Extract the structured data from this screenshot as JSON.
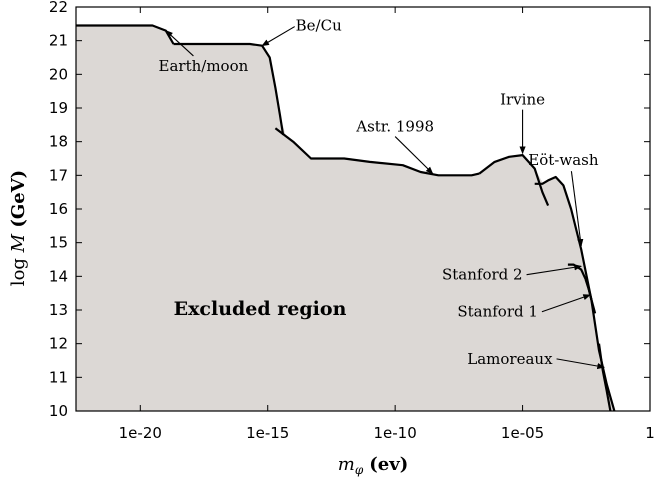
{
  "chart_data": {
    "type": "area",
    "xlabel": "m_φ (ev)",
    "ylabel": "log M (GeV)",
    "xlabel_main": "m",
    "xlabel_sub": "φ",
    "xlabel_unit": "(ev)",
    "ylabel_log": "log ",
    "ylabel_var": "M",
    "ylabel_unit": " (GeV)",
    "x_scale": "log",
    "xlim": [
      3e-23,
      1
    ],
    "ylim": [
      10,
      22
    ],
    "x_ticks": [
      {
        "value": 1e-20,
        "label": "1e-20"
      },
      {
        "value": 1e-15,
        "label": "1e-15"
      },
      {
        "value": 1e-10,
        "label": "1e-10"
      },
      {
        "value": 1e-05,
        "label": "1e-05"
      },
      {
        "value": 1,
        "label": "1"
      }
    ],
    "y_ticks": [
      10,
      11,
      12,
      13,
      14,
      15,
      16,
      17,
      18,
      19,
      20,
      21,
      22
    ],
    "fill_color": "#dcd8d5",
    "region_label": "Excluded region",
    "boundary": [
      [
        3e-23,
        21.45
      ],
      [
        3e-20,
        21.45
      ],
      [
        1e-19,
        21.3
      ],
      [
        2e-19,
        20.9
      ],
      [
        1e-17,
        20.9
      ],
      [
        2e-16,
        20.9
      ],
      [
        6e-16,
        20.85
      ],
      [
        1.2e-15,
        20.5
      ],
      [
        2e-15,
        19.6
      ],
      [
        3e-15,
        18.8
      ],
      [
        5e-15,
        18.2
      ],
      [
        1e-14,
        18.0
      ],
      [
        5e-14,
        17.5
      ],
      [
        1e-12,
        17.5
      ],
      [
        1e-11,
        17.4
      ],
      [
        2e-10,
        17.3
      ],
      [
        1e-09,
        17.1
      ],
      [
        5e-09,
        17.0
      ],
      [
        1e-07,
        17.0
      ],
      [
        2e-07,
        17.1
      ],
      [
        8e-07,
        17.4
      ],
      [
        3e-06,
        17.55
      ],
      [
        1e-05,
        17.6
      ],
      [
        3e-05,
        17.2
      ],
      [
        6e-05,
        16.8
      ],
      [
        0.0001,
        16.85
      ],
      [
        0.0002,
        16.95
      ],
      [
        0.0004,
        16.7
      ],
      [
        0.0008,
        16.0
      ],
      [
        0.002,
        14.8
      ],
      [
        0.005,
        13.3
      ],
      [
        0.01,
        11.8
      ],
      [
        0.02,
        10.8
      ],
      [
        0.04,
        10.0
      ]
    ],
    "curves": [
      {
        "name": "Earth/moon",
        "points": [
          [
            3e-23,
            21.45
          ],
          [
            3e-20,
            21.45
          ],
          [
            1e-19,
            21.3
          ],
          [
            2e-19,
            20.9
          ]
        ]
      },
      {
        "name": "Be/Cu",
        "points": [
          [
            2e-19,
            20.9
          ],
          [
            2e-16,
            20.9
          ],
          [
            6e-16,
            20.85
          ],
          [
            1.2e-15,
            20.5
          ],
          [
            2e-15,
            19.6
          ],
          [
            3e-15,
            18.8
          ],
          [
            4e-15,
            18.2
          ]
        ]
      },
      {
        "name": "Astr. 1998",
        "points": [
          [
            2e-15,
            18.4
          ],
          [
            1e-14,
            18.0
          ],
          [
            5e-14,
            17.5
          ],
          [
            1e-12,
            17.5
          ],
          [
            1e-11,
            17.4
          ],
          [
            2e-10,
            17.3
          ],
          [
            1e-09,
            17.1
          ],
          [
            5e-09,
            17.0
          ],
          [
            1e-07,
            17.0
          ],
          [
            2e-07,
            17.05
          ]
        ]
      },
      {
        "name": "Irvine",
        "points": [
          [
            2e-07,
            17.05
          ],
          [
            8e-07,
            17.4
          ],
          [
            3e-06,
            17.55
          ],
          [
            1e-05,
            17.6
          ],
          [
            3e-05,
            17.2
          ],
          [
            6e-05,
            16.5
          ],
          [
            0.0001,
            16.1
          ]
        ]
      },
      {
        "name": "Eöt-wash",
        "points": [
          [
            3e-05,
            16.75
          ],
          [
            6e-05,
            16.75
          ],
          [
            0.0001,
            16.85
          ],
          [
            0.0002,
            16.95
          ],
          [
            0.0004,
            16.7
          ],
          [
            0.0008,
            16.0
          ],
          [
            0.002,
            14.8
          ],
          [
            0.005,
            13.3
          ],
          [
            0.01,
            11.8
          ],
          [
            0.02,
            10.8
          ],
          [
            0.04,
            10.0
          ]
        ]
      },
      {
        "name": "Stanford 2",
        "points": [
          [
            0.0006,
            14.35
          ],
          [
            0.001,
            14.35
          ],
          [
            0.002,
            14.2
          ],
          [
            0.0035,
            13.8
          ],
          [
            0.005,
            13.3
          ]
        ]
      },
      {
        "name": "Stanford 1",
        "points": [
          [
            0.003,
            13.9
          ],
          [
            0.004,
            13.6
          ],
          [
            0.0055,
            13.2
          ],
          [
            0.007,
            12.9
          ]
        ]
      },
      {
        "name": "Lamoreaux",
        "points": [
          [
            0.01,
            12.0
          ],
          [
            0.014,
            11.2
          ],
          [
            0.02,
            10.6
          ],
          [
            0.028,
            10.0
          ]
        ]
      }
    ],
    "annotations": [
      {
        "text": "Earth/moon",
        "x": 3e-18,
        "y": 20.1,
        "arrow_to": [
          1e-19,
          21.3
        ],
        "anchor": "middle"
      },
      {
        "text": "Be/Cu",
        "x": 1e-13,
        "y": 21.3,
        "arrow_to": [
          6e-16,
          20.85
        ],
        "anchor": "middle"
      },
      {
        "text": "Astr. 1998",
        "x": 1e-10,
        "y": 18.3,
        "arrow_to": [
          3e-09,
          17.05
        ],
        "anchor": "middle"
      },
      {
        "text": "Irvine",
        "x": 1e-05,
        "y": 19.1,
        "arrow_to": [
          1e-05,
          17.65
        ],
        "anchor": "middle"
      },
      {
        "text": "Eöt-wash",
        "x": 0.0004,
        "y": 17.3,
        "arrow_to": [
          0.002,
          14.9
        ],
        "anchor": "middle"
      },
      {
        "text": "Stanford 2",
        "x": 1e-05,
        "y": 13.9,
        "arrow_to": [
          0.002,
          14.3
        ],
        "anchor": "end"
      },
      {
        "text": "Stanford 1",
        "x": 4e-05,
        "y": 12.8,
        "arrow_to": [
          0.0045,
          13.45
        ],
        "anchor": "end"
      },
      {
        "text": "Lamoreaux",
        "x": 0.00015,
        "y": 11.4,
        "arrow_to": [
          0.016,
          11.3
        ],
        "anchor": "end"
      }
    ]
  }
}
